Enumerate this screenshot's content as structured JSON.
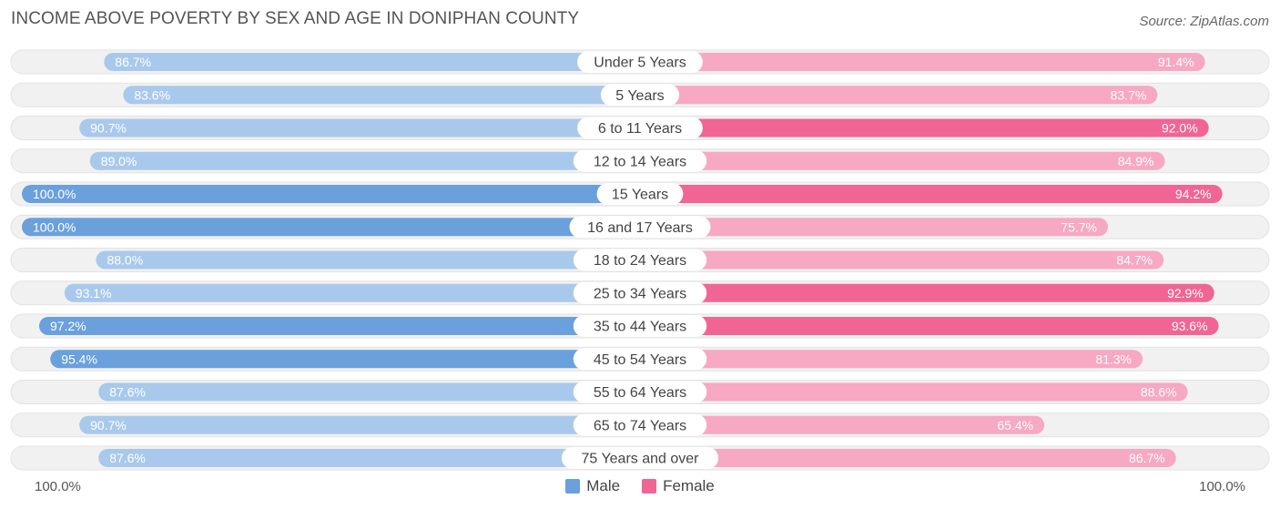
{
  "title": "INCOME ABOVE POVERTY BY SEX AND AGE IN DONIPHAN COUNTY",
  "source": "Source: ZipAtlas.com",
  "axis": {
    "left_label": "100.0%",
    "right_label": "100.0%"
  },
  "legend": {
    "male_label": "Male",
    "female_label": "Female"
  },
  "colors": {
    "male_strong": "#6aa0dc",
    "male_light": "#a9c9ec",
    "female_strong": "#f06593",
    "female_light": "#f7a8c2",
    "track": "#f1f1f1"
  },
  "chart_data": {
    "type": "bar",
    "orientation": "horizontal-diverging",
    "title": "INCOME ABOVE POVERTY BY SEX AND AGE IN DONIPHAN COUNTY",
    "xlim": [
      0,
      100
    ],
    "categories": [
      "Under 5 Years",
      "5 Years",
      "6 to 11 Years",
      "12 to 14 Years",
      "15 Years",
      "16 and 17 Years",
      "18 to 24 Years",
      "25 to 34 Years",
      "35 to 44 Years",
      "45 to 54 Years",
      "55 to 64 Years",
      "65 to 74 Years",
      "75 Years and over"
    ],
    "series": [
      {
        "name": "Male",
        "values": [
          86.7,
          83.6,
          90.7,
          89.0,
          100.0,
          100.0,
          88.0,
          93.1,
          97.2,
          95.4,
          87.6,
          90.7,
          87.6
        ],
        "labels": [
          "86.7%",
          "83.6%",
          "90.7%",
          "89.0%",
          "100.0%",
          "100.0%",
          "88.0%",
          "93.1%",
          "97.2%",
          "95.4%",
          "87.6%",
          "90.7%",
          "87.6%"
        ]
      },
      {
        "name": "Female",
        "values": [
          91.4,
          83.7,
          92.0,
          84.9,
          94.2,
          75.7,
          84.7,
          92.9,
          93.6,
          81.3,
          88.6,
          65.4,
          86.7
        ],
        "labels": [
          "91.4%",
          "83.7%",
          "92.0%",
          "84.9%",
          "94.2%",
          "75.7%",
          "84.7%",
          "92.9%",
          "93.6%",
          "81.3%",
          "88.6%",
          "65.4%",
          "86.7%"
        ]
      }
    ],
    "legend_position": "bottom-center"
  }
}
